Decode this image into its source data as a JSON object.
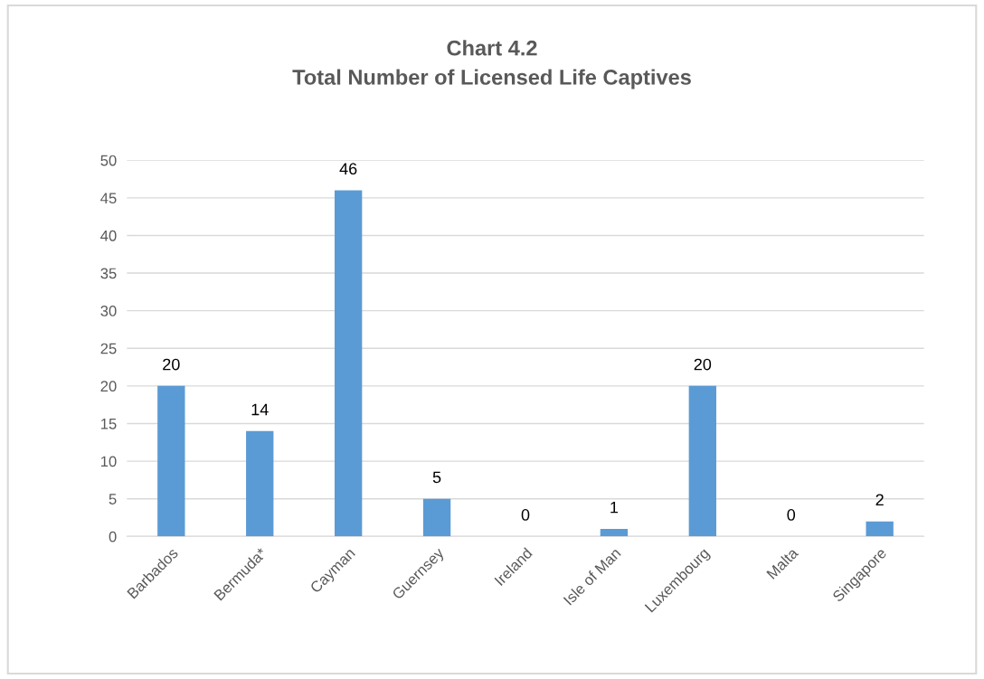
{
  "chart_data": {
    "type": "bar",
    "title": "Chart 4.2\nTotal Number of Licensed Life Captives",
    "categories": [
      "Barbados",
      "Bermuda*",
      "Cayman",
      "Guernsey",
      "Ireland",
      "Isle of Man",
      "Luxembourg",
      "Malta",
      "Singapore"
    ],
    "values": [
      20,
      14,
      46,
      5,
      0,
      1,
      20,
      0,
      2
    ],
    "color": "#5b9bd5",
    "ylim": [
      0,
      50
    ],
    "yticks": [
      0,
      5,
      10,
      15,
      20,
      25,
      30,
      35,
      40,
      45,
      50
    ],
    "grid": "y",
    "data_labels": true
  }
}
